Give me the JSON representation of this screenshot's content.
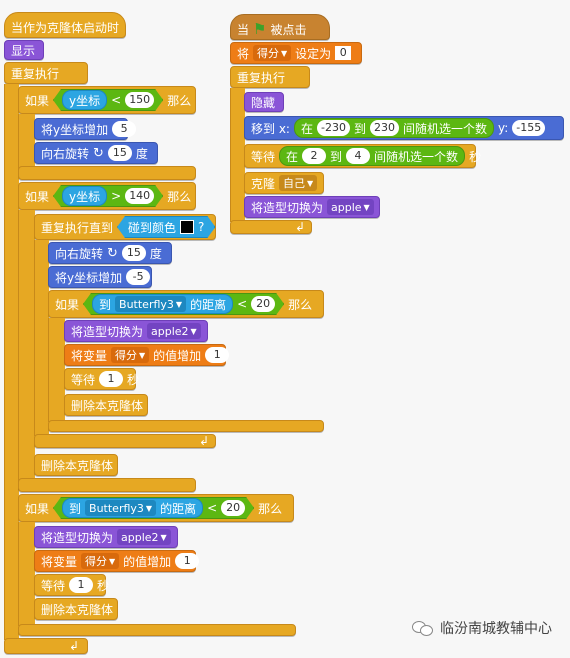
{
  "left_script": {
    "hat_clone": "当作为克隆体启动时",
    "show": "显示",
    "forever": "重复执行",
    "if1": {
      "if": "如果",
      "reporter": "y坐标",
      "op": "<",
      "value": "150",
      "then": "那么"
    },
    "change_y_1": {
      "label": "将y坐标增加",
      "value": "5"
    },
    "turn_right_1": {
      "label": "向右旋转",
      "value": "15",
      "unit": "度"
    },
    "if2": {
      "if": "如果",
      "reporter": "y坐标",
      "op": ">",
      "value": "140",
      "then": "那么"
    },
    "repeat_until": {
      "label": "重复执行直到",
      "sense": "碰到颜色",
      "q": "?"
    },
    "turn_right_2": {
      "label": "向右旋转",
      "value": "15",
      "unit": "度"
    },
    "change_y_2": {
      "label": "将y坐标增加",
      "value": "-5"
    },
    "if3": {
      "if": "如果",
      "to": "到",
      "sprite": "Butterfly3",
      "dist": "的距离",
      "op": "<",
      "value": "20",
      "then": "那么"
    },
    "switch_costume_1": {
      "label": "将造型切换为",
      "costume": "apple2"
    },
    "change_var_1": {
      "label": "将变量",
      "var": "得分",
      "suffix": "的值增加",
      "value": "1"
    },
    "wait_1": {
      "label": "等待",
      "value": "1",
      "unit": "秒"
    },
    "delete_clone_1": "删除本克隆体",
    "delete_clone_2": "删除本克隆体",
    "if4": {
      "if": "如果",
      "to": "到",
      "sprite": "Butterfly3",
      "dist": "的距离",
      "op": "<",
      "value": "20",
      "then": "那么"
    },
    "switch_costume_2": {
      "label": "将造型切换为",
      "costume": "apple2"
    },
    "change_var_2": {
      "label": "将变量",
      "var": "得分",
      "suffix": "的值增加",
      "value": "1"
    },
    "wait_2": {
      "label": "等待",
      "value": "1",
      "unit": "秒"
    },
    "delete_clone_3": "删除本克隆体"
  },
  "right_script": {
    "hat_flag": {
      "when": "当",
      "clicked": "被点击"
    },
    "set_var": {
      "label": "将",
      "var": "得分",
      "suffix": "设定为",
      "value": "0"
    },
    "forever": "重复执行",
    "hide": "隐藏",
    "goto": {
      "label": "移到 x:",
      "in": "在",
      "from": "-230",
      "to": "到",
      "to_val": "230",
      "rand": "间随机选一个数",
      "y_label": "y:",
      "y_val": "-155"
    },
    "wait": {
      "label": "等待",
      "in": "在",
      "from": "2",
      "to": "到",
      "to_val": "4",
      "rand": "间随机选一个数",
      "unit": "秒"
    },
    "clone": {
      "label": "克隆",
      "target": "自己"
    },
    "switch_costume": {
      "label": "将造型切换为",
      "costume": "apple"
    }
  },
  "watermark": "临汾南城教辅中心",
  "colors": {
    "control": "#e6a823",
    "looks": "#8a55d7",
    "motion": "#4a6cd4",
    "data": "#ee7d16",
    "sensing": "#2ca5e2",
    "operators": "#5cb712"
  }
}
